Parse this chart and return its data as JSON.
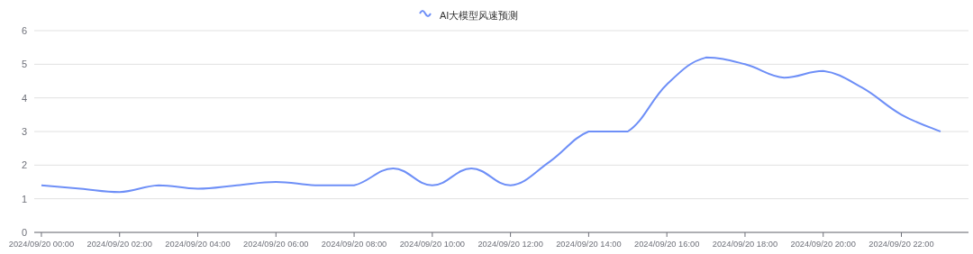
{
  "chart_data": {
    "type": "line",
    "x": [
      "2024-09-20T00:00",
      "2024-09-20T01:00",
      "2024-09-20T02:00",
      "2024-09-20T03:00",
      "2024-09-20T04:00",
      "2024-09-20T05:00",
      "2024-09-20T06:00",
      "2024-09-20T07:00",
      "2024-09-20T08:00",
      "2024-09-20T09:00",
      "2024-09-20T10:00",
      "2024-09-20T11:00",
      "2024-09-20T12:00",
      "2024-09-20T13:00",
      "2024-09-20T14:00",
      "2024-09-20T15:00",
      "2024-09-20T16:00",
      "2024-09-20T17:00",
      "2024-09-20T18:00",
      "2024-09-20T19:00",
      "2024-09-20T20:00",
      "2024-09-20T21:00",
      "2024-09-20T22:00",
      "2024-09-20T23:00"
    ],
    "series": [
      {
        "name": "AI大模型风速预测",
        "color": "#6e8ff7",
        "values": [
          1.4,
          1.3,
          1.2,
          1.4,
          1.3,
          1.4,
          1.5,
          1.4,
          1.4,
          1.9,
          1.4,
          1.9,
          1.4,
          2.1,
          3.0,
          3.0,
          4.4,
          5.2,
          5.0,
          4.6,
          4.8,
          4.3,
          3.5,
          3.0
        ]
      }
    ],
    "xlim": [
      "2024-09-19T23:49",
      "2024-09-20T23:43"
    ],
    "xticks": [
      {
        "value": "2024-09-20T00:00",
        "label": "2024/09/20 00:00"
      },
      {
        "value": "2024-09-20T02:00",
        "label": "2024/09/20 02:00"
      },
      {
        "value": "2024-09-20T04:00",
        "label": "2024/09/20 04:00"
      },
      {
        "value": "2024-09-20T06:00",
        "label": "2024/09/20 06:00"
      },
      {
        "value": "2024-09-20T08:00",
        "label": "2024/09/20 08:00"
      },
      {
        "value": "2024-09-20T10:00",
        "label": "2024/09/20 10:00"
      },
      {
        "value": "2024-09-20T12:00",
        "label": "2024/09/20 12:00"
      },
      {
        "value": "2024-09-20T14:00",
        "label": "2024/09/20 14:00"
      },
      {
        "value": "2024-09-20T16:00",
        "label": "2024/09/20 16:00"
      },
      {
        "value": "2024-09-20T18:00",
        "label": "2024/09/20 18:00"
      },
      {
        "value": "2024-09-20T20:00",
        "label": "2024/09/20 20:00"
      },
      {
        "value": "2024-09-20T22:00",
        "label": "2024/09/20 22:00"
      }
    ],
    "ylim": [
      0,
      6
    ],
    "yticks": [
      0,
      1,
      2,
      3,
      4,
      5,
      6
    ],
    "grid": "y",
    "legend": "top",
    "marker": "none",
    "line_style": "solid"
  }
}
